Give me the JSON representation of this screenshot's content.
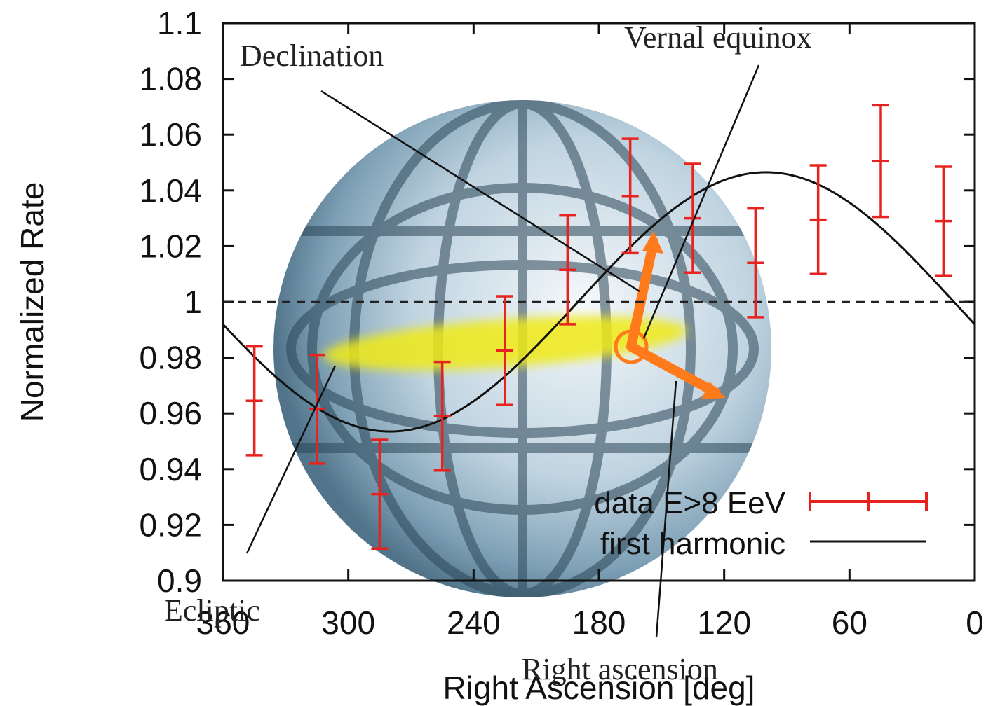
{
  "chart_data": {
    "type": "scatter",
    "xlabel": "Right Ascension [deg]",
    "ylabel": "Normalized Rate",
    "xlim": [
      360,
      0
    ],
    "ylim": [
      0.9,
      1.1
    ],
    "x_reversed": true,
    "xticks": [
      "360",
      "300",
      "240",
      "180",
      "120",
      "60",
      "0"
    ],
    "yticks": [
      "0.9",
      "0.92",
      "0.94",
      "0.96",
      "0.98",
      "1",
      "1.02",
      "1.04",
      "1.06",
      "1.08",
      "1.1"
    ],
    "reference_line": {
      "y": 1.0,
      "style": "dashed"
    },
    "series": [
      {
        "name": "data E>8 EeV",
        "kind": "errorbar",
        "color": "#e8231f",
        "x": [
          345,
          315,
          285,
          255,
          225,
          195,
          165,
          135,
          105,
          75,
          45,
          15
        ],
        "y": [
          0.9645,
          0.9615,
          0.931,
          0.959,
          0.9825,
          1.0115,
          1.038,
          1.03,
          1.014,
          1.0295,
          1.0505,
          1.029
        ],
        "err": [
          0.0195,
          0.0195,
          0.0195,
          0.0195,
          0.0195,
          0.0195,
          0.0205,
          0.0195,
          0.0195,
          0.0195,
          0.02,
          0.0195
        ]
      },
      {
        "name": "first harmonic",
        "kind": "line",
        "color": "#111111",
        "mean": 1.0,
        "amplitude": 0.0465,
        "phase_deg": 100
      }
    ],
    "legend_position": "bottom-right",
    "annotations": [
      "Declination",
      "Vernal equinox",
      "Ecliptic",
      "Right ascension"
    ]
  },
  "colors": {
    "error_bars": "#e8231f",
    "harmonic": "#111111",
    "ecliptic": "#f2ea1a",
    "arrow": "#ff7a1a",
    "sphere": "#8fb2c7"
  }
}
